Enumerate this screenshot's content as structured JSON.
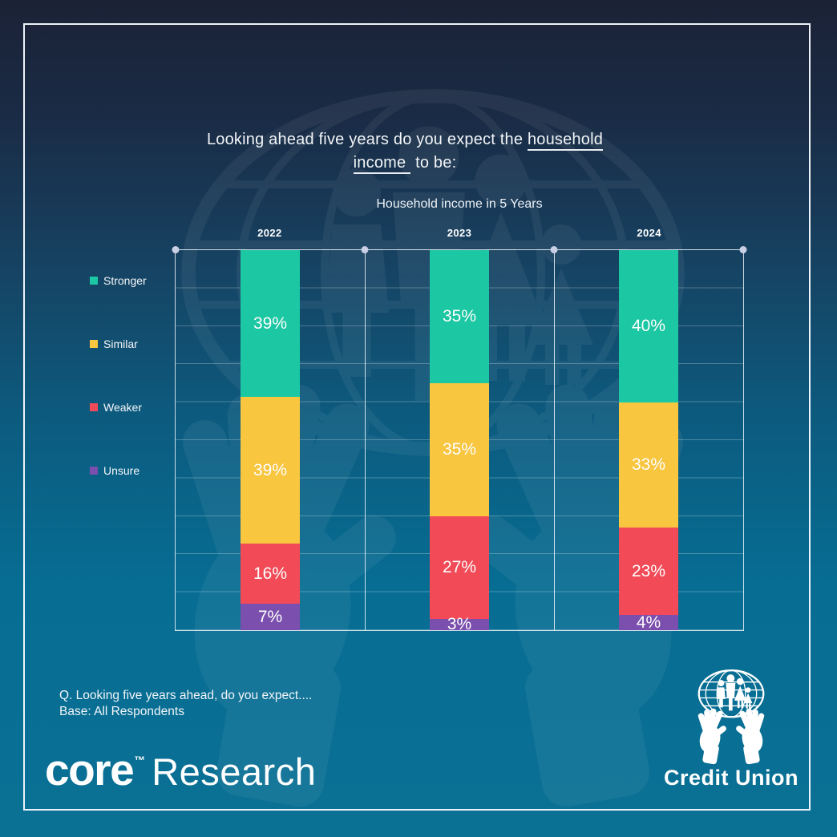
{
  "page": {
    "background_top": "#1b2236",
    "background_bottom": "#0a7094",
    "border_color": "#eef3f9"
  },
  "title": {
    "text_before": "Looking ahead five years do you expect the ",
    "underline_word1": "household",
    "underline_word2": "income",
    "text_after": " to be:"
  },
  "chart_data": {
    "type": "bar",
    "stacked": true,
    "title": "Household income in 5 Years",
    "categories": [
      "2022",
      "2023",
      "2024"
    ],
    "series": [
      {
        "name": "Stronger",
        "color": "#1bc8a3",
        "values": [
          39,
          35,
          40
        ]
      },
      {
        "name": "Similar",
        "color": "#f8c63f",
        "values": [
          39,
          35,
          33
        ]
      },
      {
        "name": "Weaker",
        "color": "#f24b57",
        "values": [
          16,
          27,
          23
        ]
      },
      {
        "name": "Unsure",
        "color": "#7a4fae",
        "values": [
          7,
          3,
          4
        ]
      }
    ],
    "value_suffix": "%",
    "ylim": [
      0,
      100
    ],
    "gridline_interval_pct": 10,
    "grid": "horizontal lines every 10%, top markers (dots) on column dividers",
    "legend_position": "left"
  },
  "footnote": {
    "line1": "Q. Looking five years ahead, do you expect....",
    "line2": "Base: All Respondents"
  },
  "branding": {
    "core_logo": {
      "bold": "core",
      "tm": "™",
      "light": "Research"
    },
    "credit_union": {
      "label": "Credit Union",
      "icon": "hands-holding-globe-family-icon"
    }
  }
}
